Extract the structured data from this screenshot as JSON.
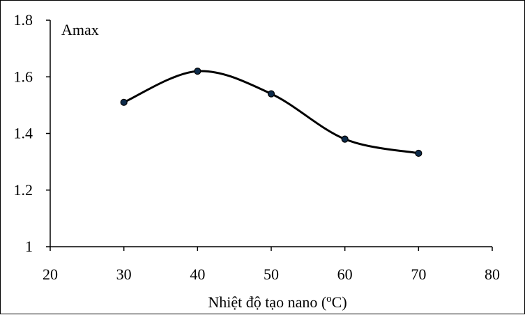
{
  "chart_data": {
    "type": "line",
    "title": "",
    "xlabel": "Nhiệt độ tạo nano (",
    "xlabel_sup": "o",
    "xlabel_tail": "C)",
    "ylabel": "",
    "xlim": [
      20,
      80
    ],
    "ylim": [
      1,
      1.8
    ],
    "x_ticks": [
      20,
      30,
      40,
      50,
      60,
      70,
      80
    ],
    "y_ticks": [
      1,
      1.2,
      1.4,
      1.6,
      1.8
    ],
    "x_tick_labels": [
      "20",
      "30",
      "40",
      "50",
      "60",
      "70",
      "80"
    ],
    "y_tick_labels": [
      "1",
      "1.2",
      "1.4",
      "1.6",
      "1.8"
    ],
    "grid": false,
    "smooth": true,
    "series": [
      {
        "name": "Amax",
        "x": [
          30,
          40,
          50,
          60,
          70
        ],
        "values": [
          1.51,
          1.62,
          1.54,
          1.38,
          1.33
        ],
        "color": "#000000",
        "marker_color": "#0d2b4a"
      }
    ]
  }
}
